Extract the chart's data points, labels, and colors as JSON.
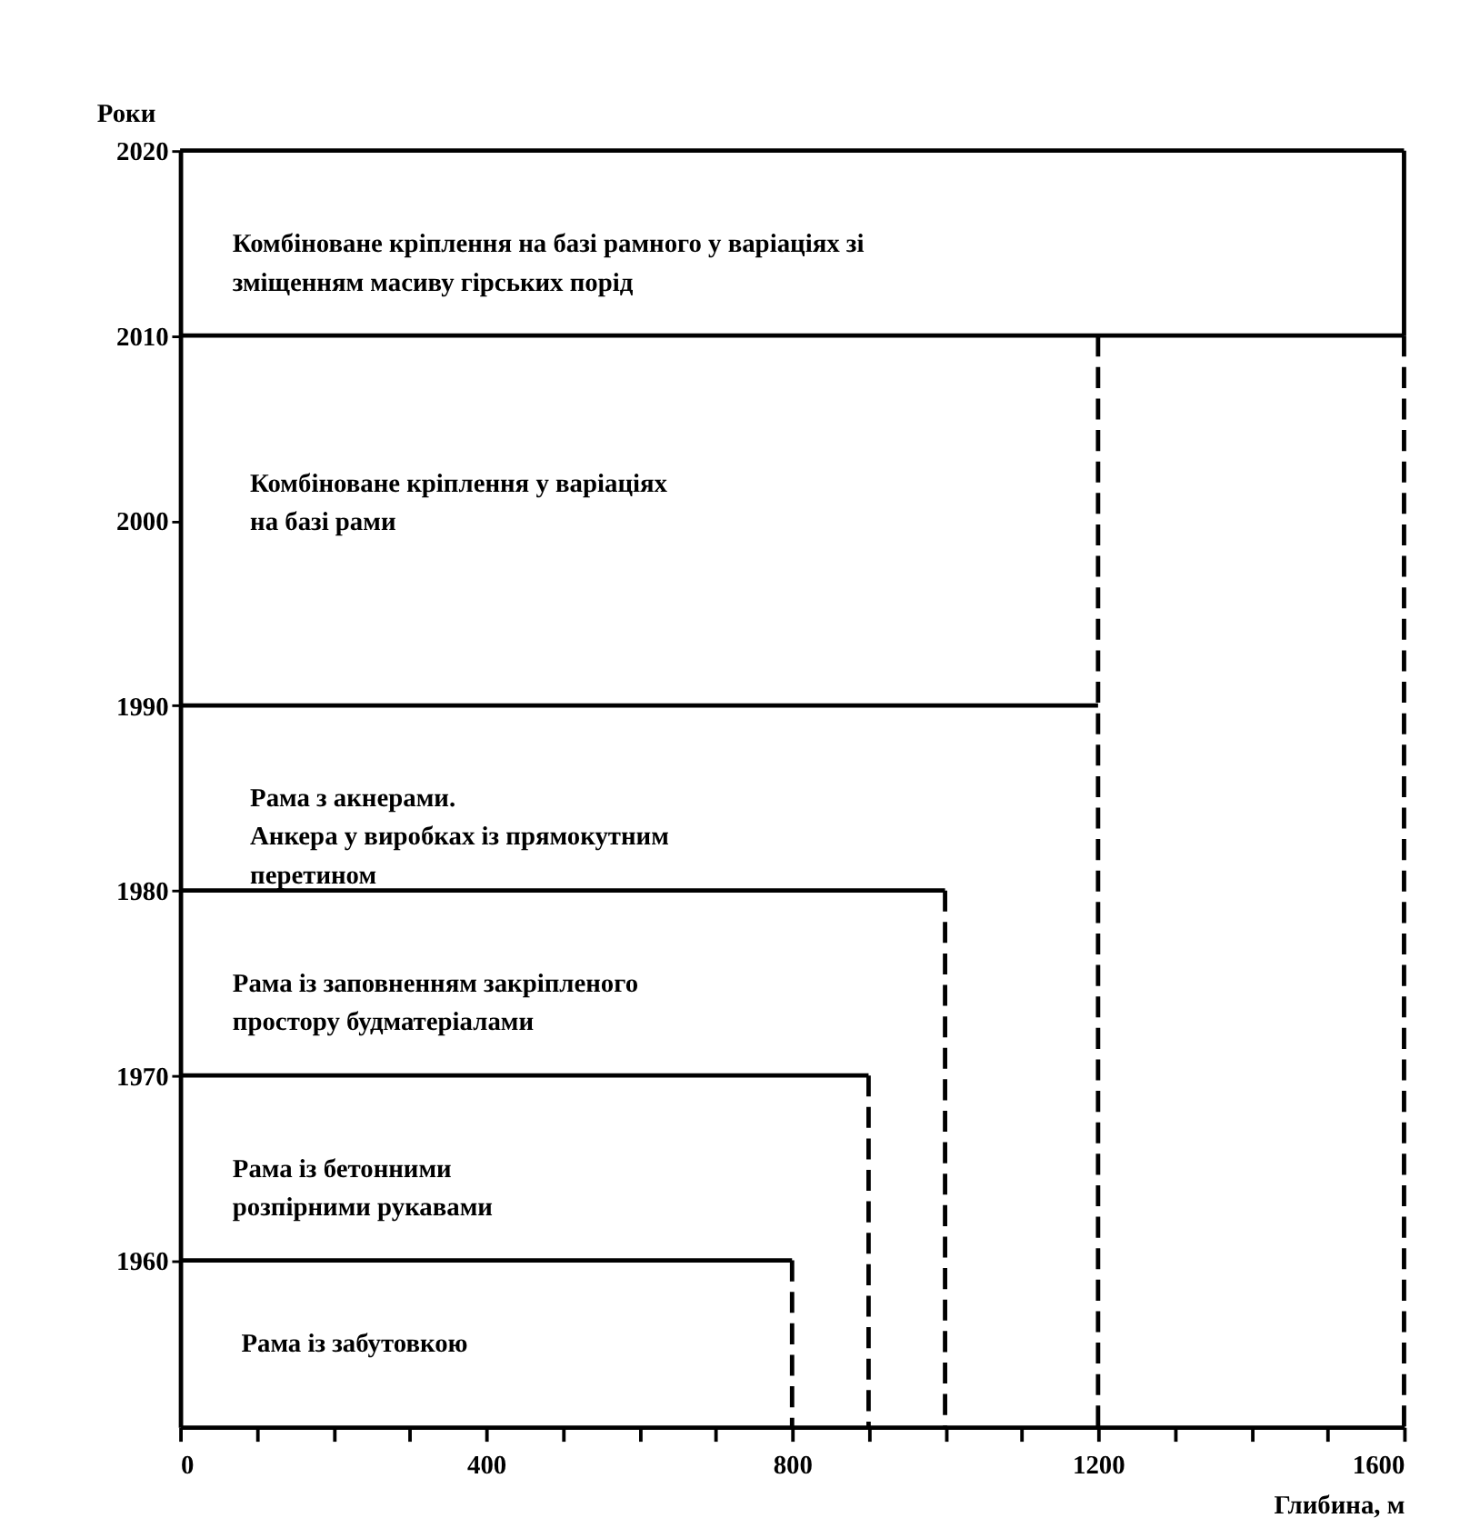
{
  "chart_data": {
    "type": "line",
    "xlabel": "Глибина, м",
    "ylabel": "Роки",
    "xlim": [
      0,
      1600
    ],
    "ylim": [
      1951,
      2020
    ],
    "xticks": [
      0,
      {
        "value": 100,
        "label": null
      },
      {
        "value": 200,
        "label": null
      },
      {
        "value": 300,
        "label": null
      },
      400,
      {
        "value": 500,
        "label": null
      },
      {
        "value": 600,
        "label": null
      },
      {
        "value": 700,
        "label": null
      },
      800,
      {
        "value": 900,
        "label": null
      },
      {
        "value": 1000,
        "label": null
      },
      {
        "value": 1100,
        "label": null
      },
      1200,
      {
        "value": 1300,
        "label": null
      },
      {
        "value": 1400,
        "label": null
      },
      {
        "value": 1500,
        "label": null
      },
      1600
    ],
    "yticks": [
      1960,
      1970,
      1980,
      1990,
      2000,
      2010,
      2020
    ],
    "grid": false,
    "marker": "none",
    "series": [
      {
        "color": "#000000",
        "line_style": "solid",
        "x": [
          0,
          800
        ],
        "values": [
          1960,
          1960
        ]
      },
      {
        "color": "#000000",
        "line_style": "solid",
        "x": [
          0,
          900
        ],
        "values": [
          1970,
          1970
        ]
      },
      {
        "color": "#000000",
        "line_style": "solid",
        "x": [
          0,
          1000
        ],
        "values": [
          1980,
          1980
        ]
      },
      {
        "color": "#000000",
        "line_style": "solid",
        "x": [
          0,
          1200
        ],
        "values": [
          1990,
          1990
        ]
      },
      {
        "color": "#000000",
        "line_style": "solid",
        "x": [
          0,
          1600
        ],
        "values": [
          2010,
          2010
        ]
      },
      {
        "color": "#000000",
        "line_style": "solid",
        "x": [
          0,
          1600
        ],
        "values": [
          2020,
          2020
        ]
      },
      {
        "color": "#000000",
        "line_style": "solid",
        "x": [
          1600,
          1600
        ],
        "values": [
          2020,
          2010
        ]
      },
      {
        "color": "#000000",
        "line_style": "dashed",
        "x": [
          800,
          800
        ],
        "values": [
          1960,
          1951
        ]
      },
      {
        "color": "#000000",
        "line_style": "dashed",
        "x": [
          900,
          900
        ],
        "values": [
          1970,
          1951
        ]
      },
      {
        "color": "#000000",
        "line_style": "dashed",
        "x": [
          1000,
          1000
        ],
        "values": [
          1980,
          1951
        ]
      },
      {
        "color": "#000000",
        "line_style": "dashed",
        "x": [
          1200,
          1200
        ],
        "values": [
          2010,
          1951
        ]
      },
      {
        "color": "#000000",
        "line_style": "dashed",
        "x": [
          1600,
          1600
        ],
        "values": [
          2010,
          1951
        ]
      }
    ],
    "annotations": [
      "Комбіноване кріплення на базі рамного у варіаціях зі\nзміщенням масиву гірських порід",
      "Комбіноване кріплення у варіаціях\nна базі рами",
      "Рама з акнерами.\nАнкера у виробках із прямокутним\nперетином",
      "Рама із заповненням закріпленого\nпростору будматеріалами",
      "Рама із бетонними\nрозпірними рукавами",
      "Рама із забутовкою"
    ]
  }
}
